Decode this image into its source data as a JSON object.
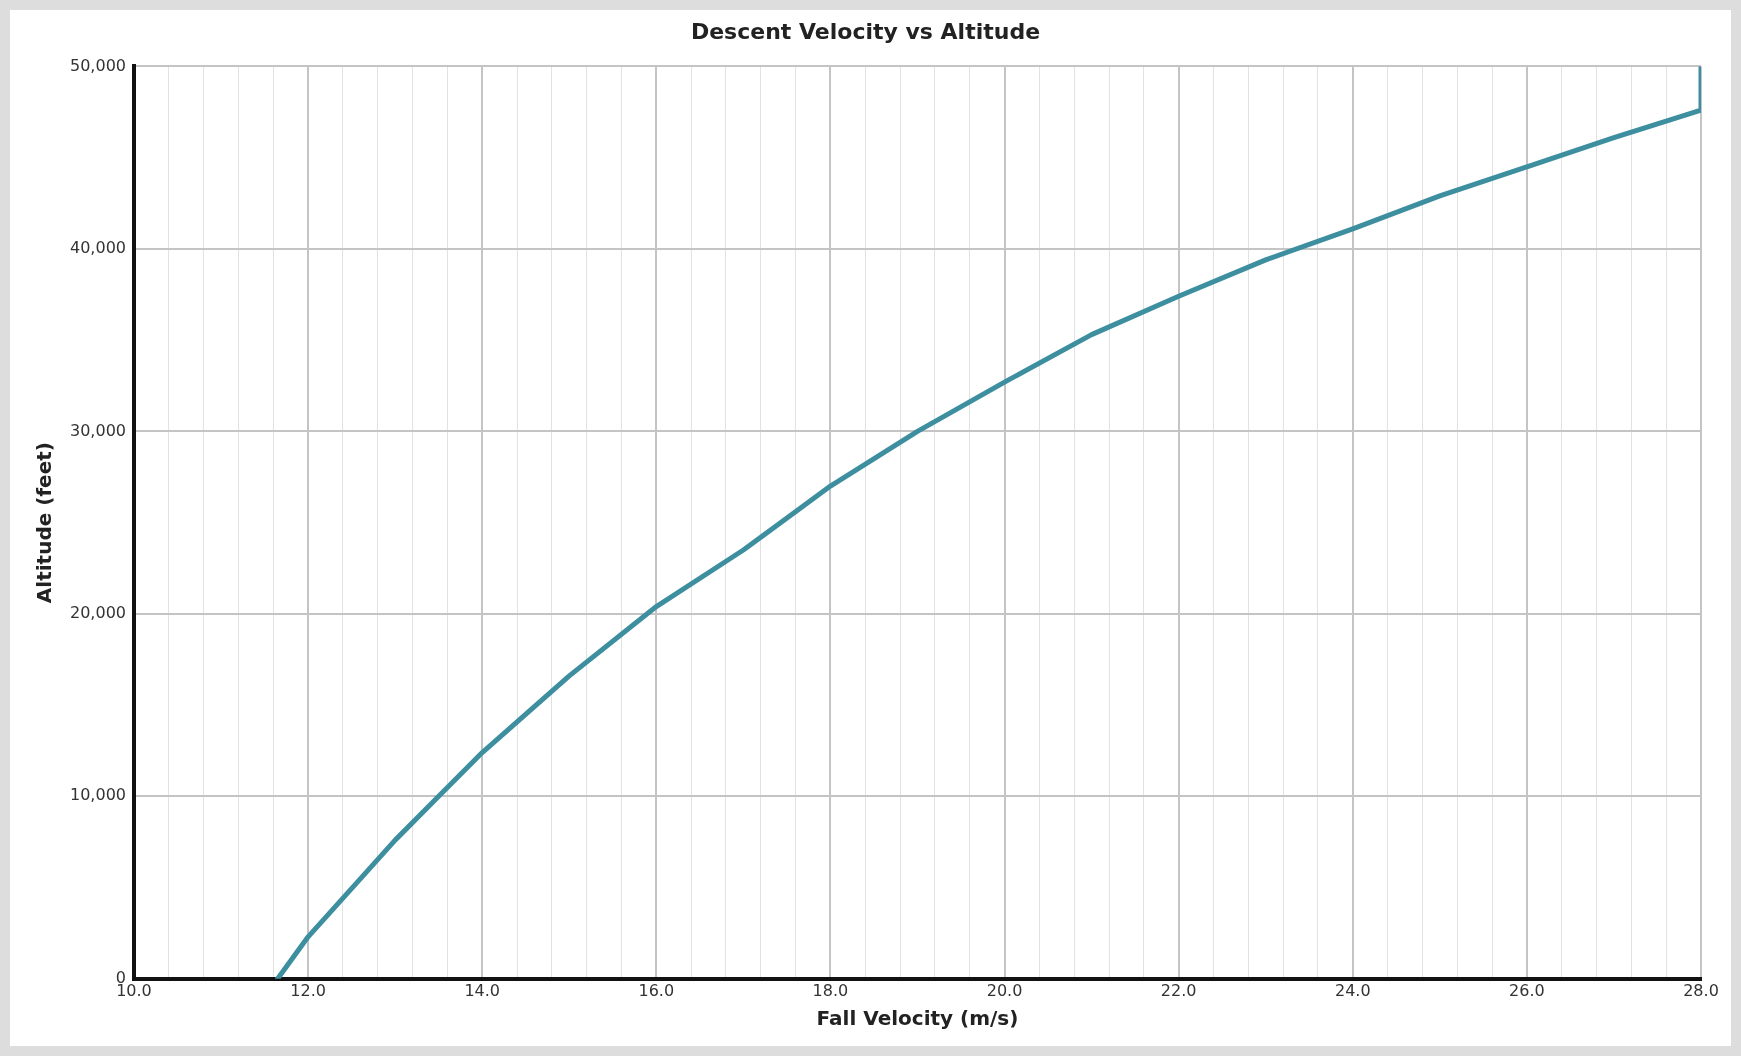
{
  "chart_data": {
    "type": "line",
    "title": "Descent Velocity vs Altitude",
    "xlabel": "Fall Velocity (m/s)",
    "ylabel": "Altitude (feet)",
    "x": [
      11.65,
      12,
      13,
      13.5,
      14,
      15,
      16,
      17,
      18,
      19,
      20,
      21,
      22,
      23,
      24,
      25,
      26,
      27,
      28,
      28
    ],
    "series": [
      {
        "color": "#3d8fa0",
        "values": [
          0,
          2300,
          7600,
          10000,
          12400,
          16600,
          20400,
          23500,
          27000,
          30000,
          32700,
          35300,
          37400,
          39400,
          41100,
          42900,
          44500,
          46100,
          47600,
          50000
        ]
      }
    ],
    "xlim": [
      10,
      28
    ],
    "xticks": [
      {
        "value": 10,
        "label": "10.0"
      },
      {
        "value": 10.4,
        "label": null
      },
      {
        "value": 10.8,
        "label": null
      },
      {
        "value": 11.2,
        "label": null
      },
      {
        "value": 11.6,
        "label": null
      },
      {
        "value": 12,
        "label": "12.0"
      },
      {
        "value": 12.4,
        "label": null
      },
      {
        "value": 12.8,
        "label": null
      },
      {
        "value": 13.2,
        "label": null
      },
      {
        "value": 13.6,
        "label": null
      },
      {
        "value": 14,
        "label": "14.0"
      },
      {
        "value": 14.4,
        "label": null
      },
      {
        "value": 14.8,
        "label": null
      },
      {
        "value": 15.2,
        "label": null
      },
      {
        "value": 15.6,
        "label": null
      },
      {
        "value": 16,
        "label": "16.0"
      },
      {
        "value": 16.4,
        "label": null
      },
      {
        "value": 16.8,
        "label": null
      },
      {
        "value": 17.2,
        "label": null
      },
      {
        "value": 17.6,
        "label": null
      },
      {
        "value": 18,
        "label": "18.0"
      },
      {
        "value": 18.4,
        "label": null
      },
      {
        "value": 18.8,
        "label": null
      },
      {
        "value": 19.2,
        "label": null
      },
      {
        "value": 19.6,
        "label": null
      },
      {
        "value": 20,
        "label": "20.0"
      },
      {
        "value": 20.4,
        "label": null
      },
      {
        "value": 20.8,
        "label": null
      },
      {
        "value": 21.2,
        "label": null
      },
      {
        "value": 21.6,
        "label": null
      },
      {
        "value": 22,
        "label": "22.0"
      },
      {
        "value": 22.4,
        "label": null
      },
      {
        "value": 22.8,
        "label": null
      },
      {
        "value": 23.2,
        "label": null
      },
      {
        "value": 23.6,
        "label": null
      },
      {
        "value": 24,
        "label": "24.0"
      },
      {
        "value": 24.4,
        "label": null
      },
      {
        "value": 24.8,
        "label": null
      },
      {
        "value": 25.2,
        "label": null
      },
      {
        "value": 25.6,
        "label": null
      },
      {
        "value": 26,
        "label": "26.0"
      },
      {
        "value": 26.4,
        "label": null
      },
      {
        "value": 26.8,
        "label": null
      },
      {
        "value": 27.2,
        "label": null
      },
      {
        "value": 27.6,
        "label": null
      },
      {
        "value": 28,
        "label": "28.0"
      }
    ],
    "ylim": [
      0,
      50000
    ],
    "yticks": [
      0,
      {
        "value": 10000,
        "label": "10,000"
      },
      {
        "value": 20000,
        "label": "20,000"
      },
      {
        "value": 30000,
        "label": "30,000"
      },
      {
        "value": 40000,
        "label": "40,000"
      },
      {
        "value": 50000,
        "label": "50,000"
      }
    ],
    "grid": true,
    "legend": false,
    "marker": "none",
    "line_style": "solid"
  }
}
